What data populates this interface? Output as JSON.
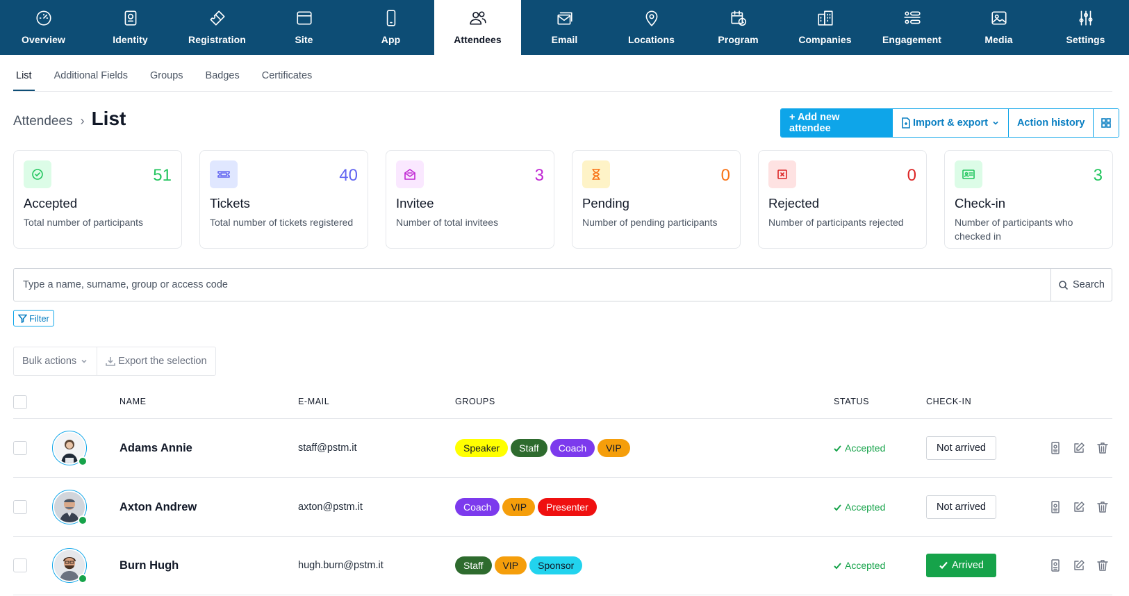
{
  "topnav": {
    "items": [
      {
        "label": "Overview",
        "icon": "gauge-icon"
      },
      {
        "label": "Identity",
        "icon": "passport-icon"
      },
      {
        "label": "Registration",
        "icon": "ticket-icon"
      },
      {
        "label": "Site",
        "icon": "browser-window-icon"
      },
      {
        "label": "App",
        "icon": "mobile-phone-icon"
      },
      {
        "label": "Attendees",
        "icon": "users-icon",
        "active": true
      },
      {
        "label": "Email",
        "icon": "mail-stack-icon"
      },
      {
        "label": "Locations",
        "icon": "map-pin-icon"
      },
      {
        "label": "Program",
        "icon": "calendar-clock-icon"
      },
      {
        "label": "Companies",
        "icon": "buildings-icon"
      },
      {
        "label": "Engagement",
        "icon": "list-people-icon"
      },
      {
        "label": "Media",
        "icon": "image-icon"
      },
      {
        "label": "Settings",
        "icon": "sliders-icon"
      }
    ]
  },
  "subtabs": [
    "List",
    "Additional Fields",
    "Groups",
    "Badges",
    "Certificates"
  ],
  "breadcrumb": {
    "parent": "Attendees",
    "separator": "›",
    "current": "List"
  },
  "actions": {
    "add": "+ Add new attendee",
    "import_export": "Import & export",
    "history": "Action history"
  },
  "cards": [
    {
      "value": "51",
      "title": "Accepted",
      "desc": "Total number of participants",
      "color": "#22c55e",
      "bg": "#dcfce7",
      "icon": "check-circle-icon"
    },
    {
      "value": "40",
      "title": "Tickets",
      "desc": "Total number of tickets registered",
      "color": "#6366f1",
      "bg": "#e0e7ff",
      "icon": "ticket-icon"
    },
    {
      "value": "3",
      "title": "Invitee",
      "desc": "Number of total invitees",
      "color": "#c026d3",
      "bg": "#fae8ff",
      "icon": "envelope-open-icon"
    },
    {
      "value": "0",
      "title": "Pending",
      "desc": "Number of pending participants",
      "color": "#f97316",
      "bg": "#fef3c7",
      "icon": "hourglass-icon"
    },
    {
      "value": "0",
      "title": "Rejected",
      "desc": "Number of participants rejected",
      "color": "#dc2626",
      "bg": "#fee2e2",
      "icon": "x-square-icon"
    },
    {
      "value": "3",
      "title": "Check-in",
      "desc": "Number of participants who checked in",
      "color": "#22c55e",
      "bg": "#dcfce7",
      "icon": "id-card-icon"
    }
  ],
  "search": {
    "placeholder": "Type a name, surname, group or access code",
    "button": "Search"
  },
  "filter": "Filter",
  "bulk": {
    "actions": "Bulk actions",
    "export": "Export the selection"
  },
  "table": {
    "headers": {
      "name": "NAME",
      "email": "E-MAIL",
      "groups": "GROUPS",
      "status": "STATUS",
      "checkin": "CHECK-IN"
    },
    "rows": [
      {
        "name": "Adams Annie",
        "email": "staff@pstm.it",
        "status": "Accepted",
        "checkin": "Not arrived",
        "arrived": false,
        "groups": [
          {
            "label": "Speaker",
            "bg": "#ffff00",
            "fg": "#111827"
          },
          {
            "label": "Staff",
            "bg": "#2e6b2e",
            "fg": "#ffffff"
          },
          {
            "label": "Coach",
            "bg": "#7c3aed",
            "fg": "#ffffff"
          },
          {
            "label": "VIP",
            "bg": "#f59e0b",
            "fg": "#111827"
          }
        ]
      },
      {
        "name": "Axton Andrew",
        "email": "axton@pstm.it",
        "status": "Accepted",
        "checkin": "Not arrived",
        "arrived": false,
        "groups": [
          {
            "label": "Coach",
            "bg": "#7c3aed",
            "fg": "#ffffff"
          },
          {
            "label": "VIP",
            "bg": "#f59e0b",
            "fg": "#111827"
          },
          {
            "label": "Presenter",
            "bg": "#ef1010",
            "fg": "#ffffff"
          }
        ]
      },
      {
        "name": "Burn Hugh",
        "email": "hugh.burn@pstm.it",
        "status": "Accepted",
        "checkin": "Arrived",
        "arrived": true,
        "groups": [
          {
            "label": "Staff",
            "bg": "#2e6b2e",
            "fg": "#ffffff"
          },
          {
            "label": "VIP",
            "bg": "#f59e0b",
            "fg": "#111827"
          },
          {
            "label": "Sponsor",
            "bg": "#22d3ee",
            "fg": "#111827"
          }
        ]
      }
    ]
  }
}
